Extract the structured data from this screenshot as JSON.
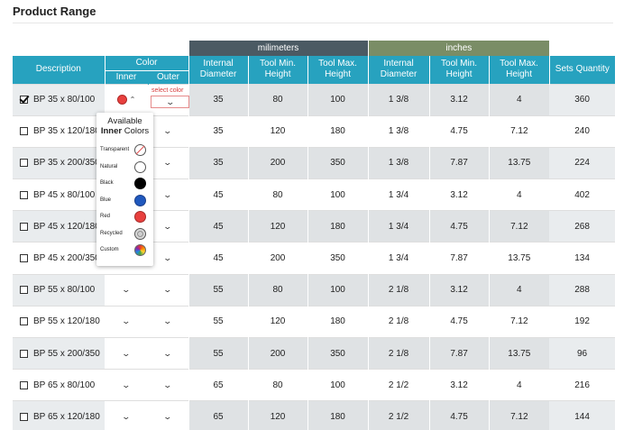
{
  "page_title": "Product Range",
  "group_headers": {
    "mm": "milimeters",
    "inches": "inches"
  },
  "headers": {
    "description": "Description",
    "color": "Color",
    "inner": "Inner",
    "outer": "Outer",
    "mm_internal": "Internal Diameter",
    "mm_tool_min": "Tool Min. Height",
    "mm_tool_max": "Tool Max. Height",
    "in_internal": "Internal Diameter",
    "in_tool_min": "Tool Min. Height",
    "in_tool_max": "Tool Max. Height",
    "sets": "Sets Quantity"
  },
  "outer_hint": "select color",
  "popup": {
    "title_line1": "Available",
    "title_bold": "Inner",
    "title_rest": "Colors",
    "options": [
      {
        "label": "Transparent",
        "icon": "transparent-swatch-icon"
      },
      {
        "label": "Natural",
        "icon": "natural-swatch-icon"
      },
      {
        "label": "Black",
        "icon": "black-swatch-icon",
        "color": "#000000"
      },
      {
        "label": "Blue",
        "icon": "blue-swatch-icon",
        "color": "#1f58bd"
      },
      {
        "label": "Red",
        "icon": "red-swatch-icon",
        "color": "#e8403e"
      },
      {
        "label": "Recycled",
        "icon": "recycled-swatch-icon"
      },
      {
        "label": "Custom",
        "icon": "custom-swatch-icon"
      }
    ]
  },
  "selected_inner_color": "#e8403e",
  "rows": [
    {
      "desc": "BP 35 x 80/100",
      "checked": true,
      "mm_id": "35",
      "mm_min": "80",
      "mm_max": "100",
      "in_id": "1 3/8",
      "in_min": "3.12",
      "in_max": "4",
      "sets": "360"
    },
    {
      "desc": "BP 35 x 120/180",
      "checked": false,
      "mm_id": "35",
      "mm_min": "120",
      "mm_max": "180",
      "in_id": "1 3/8",
      "in_min": "4.75",
      "in_max": "7.12",
      "sets": "240"
    },
    {
      "desc": "BP 35 x 200/350",
      "checked": false,
      "mm_id": "35",
      "mm_min": "200",
      "mm_max": "350",
      "in_id": "1 3/8",
      "in_min": "7.87",
      "in_max": "13.75",
      "sets": "224"
    },
    {
      "desc": "BP 45 x 80/100",
      "checked": false,
      "mm_id": "45",
      "mm_min": "80",
      "mm_max": "100",
      "in_id": "1 3/4",
      "in_min": "3.12",
      "in_max": "4",
      "sets": "402"
    },
    {
      "desc": "BP 45 x 120/180",
      "checked": false,
      "mm_id": "45",
      "mm_min": "120",
      "mm_max": "180",
      "in_id": "1 3/4",
      "in_min": "4.75",
      "in_max": "7.12",
      "sets": "268"
    },
    {
      "desc": "BP 45 x 200/350",
      "checked": false,
      "mm_id": "45",
      "mm_min": "200",
      "mm_max": "350",
      "in_id": "1 3/4",
      "in_min": "7.87",
      "in_max": "13.75",
      "sets": "134"
    },
    {
      "desc": "BP 55 x 80/100",
      "checked": false,
      "mm_id": "55",
      "mm_min": "80",
      "mm_max": "100",
      "in_id": "2 1/8",
      "in_min": "3.12",
      "in_max": "4",
      "sets": "288"
    },
    {
      "desc": "BP 55 x 120/180",
      "checked": false,
      "mm_id": "55",
      "mm_min": "120",
      "mm_max": "180",
      "in_id": "2 1/8",
      "in_min": "4.75",
      "in_max": "7.12",
      "sets": "192"
    },
    {
      "desc": "BP 55 x 200/350",
      "checked": false,
      "mm_id": "55",
      "mm_min": "200",
      "mm_max": "350",
      "in_id": "2 1/8",
      "in_min": "7.87",
      "in_max": "13.75",
      "sets": "96"
    },
    {
      "desc": "BP 65 x 80/100",
      "checked": false,
      "mm_id": "65",
      "mm_min": "80",
      "mm_max": "100",
      "in_id": "2 1/2",
      "in_min": "3.12",
      "in_max": "4",
      "sets": "216"
    },
    {
      "desc": "BP 65 x 120/180",
      "checked": false,
      "mm_id": "65",
      "mm_min": "120",
      "mm_max": "180",
      "in_id": "2 1/2",
      "in_min": "4.75",
      "in_max": "7.12",
      "sets": "144"
    }
  ]
}
